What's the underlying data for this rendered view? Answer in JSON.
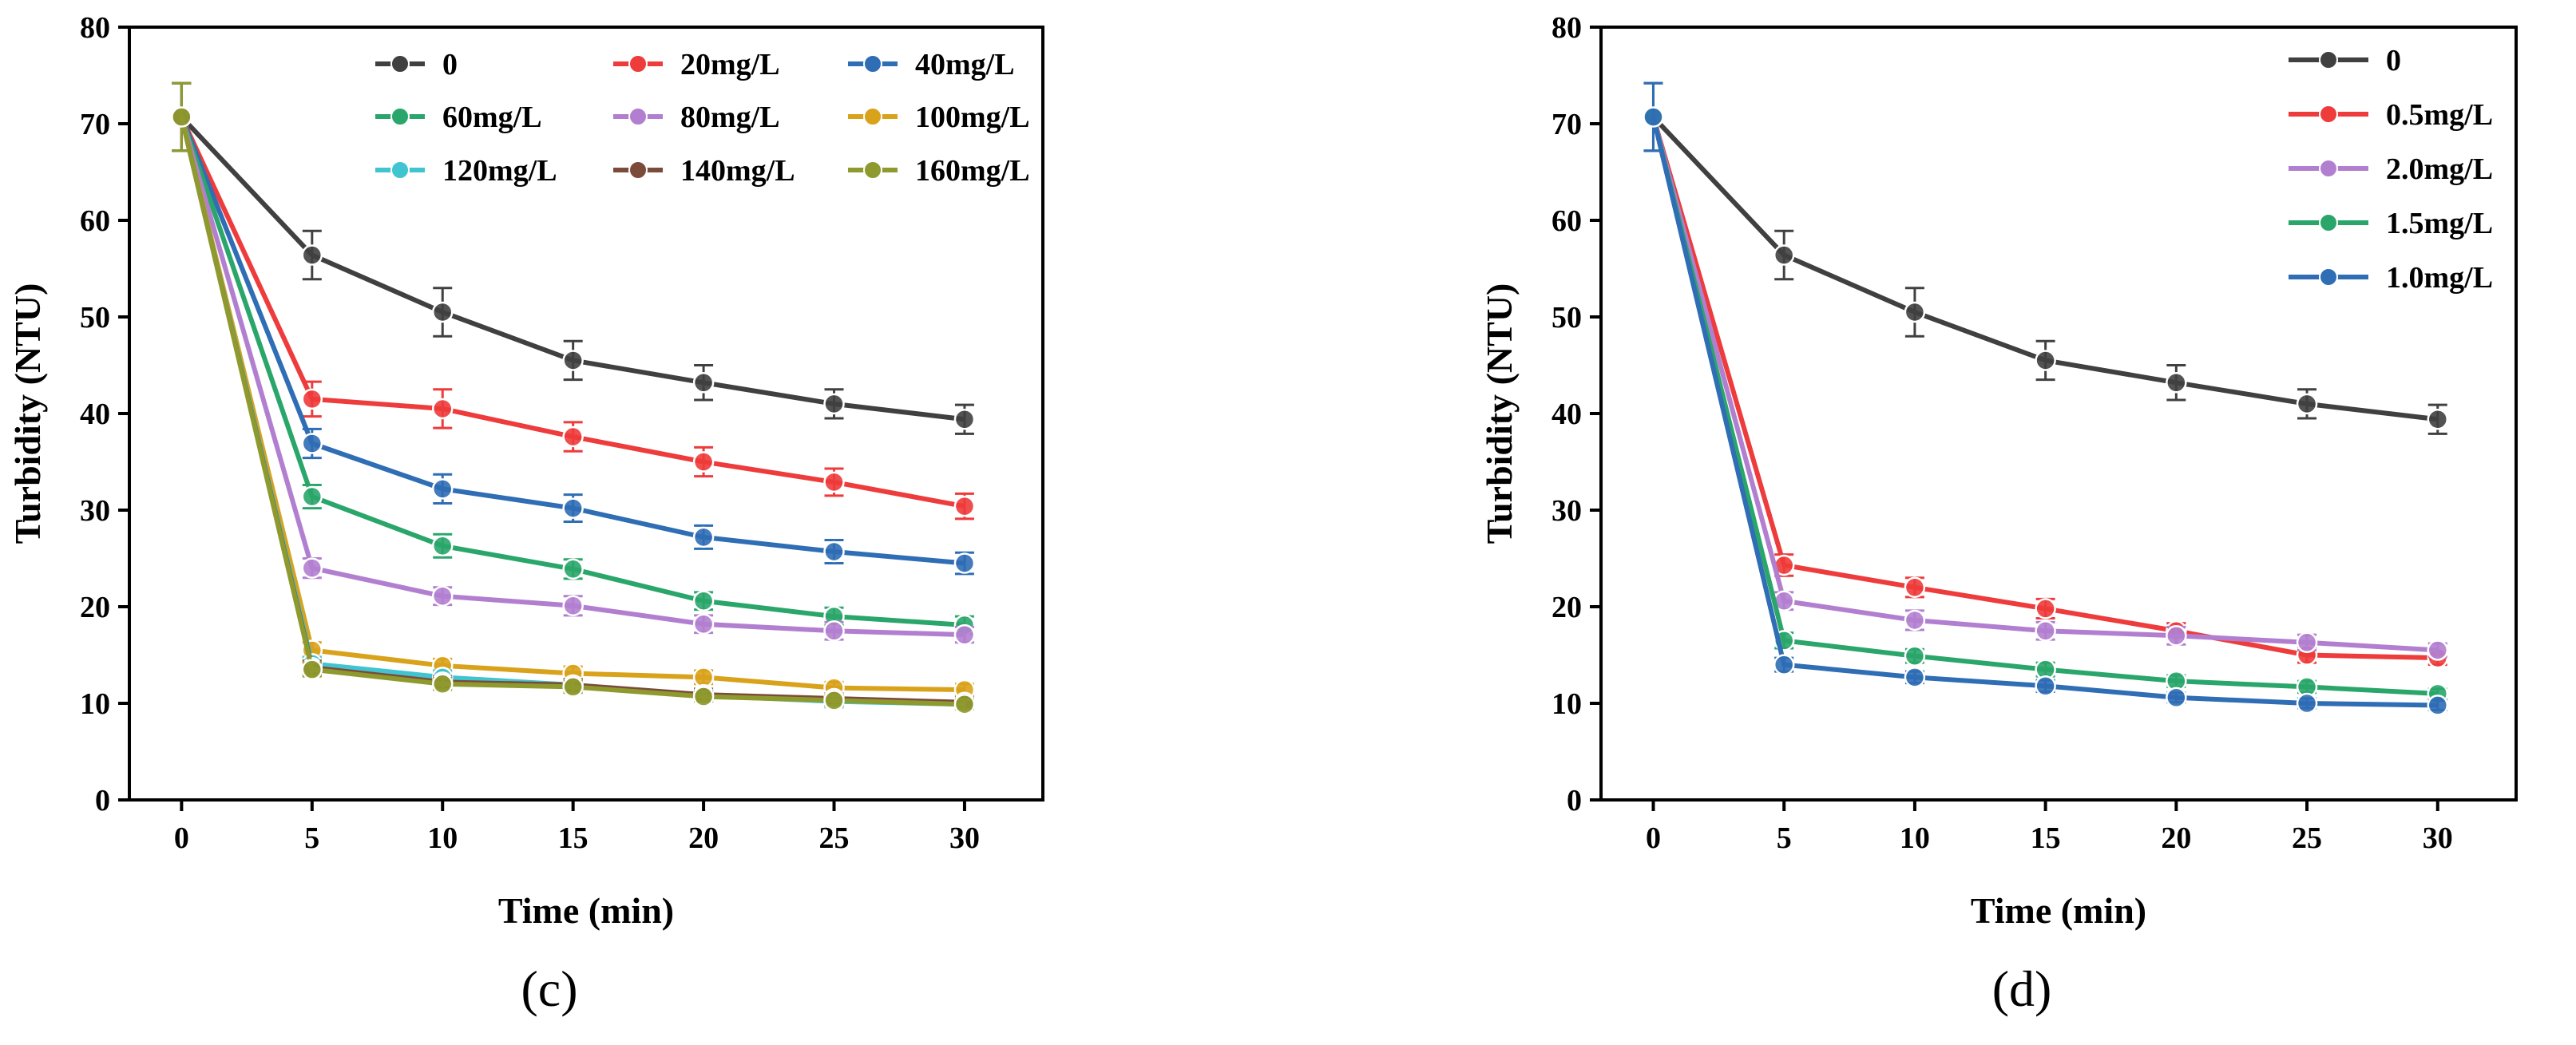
{
  "chart_data": [
    {
      "type": "line",
      "panel_label": "(c)",
      "xlabel": "Time (min)",
      "ylabel": "Turbidity (NTU)",
      "xlim": [
        -2,
        33
      ],
      "ylim": [
        0,
        80
      ],
      "xticks": [
        0,
        5,
        10,
        15,
        20,
        25,
        30
      ],
      "yticks": [
        0,
        10,
        20,
        30,
        40,
        50,
        60,
        70,
        80
      ],
      "grid": false,
      "legend_position": "top-right",
      "x": [
        0,
        5,
        10,
        15,
        20,
        25,
        30
      ],
      "series": [
        {
          "name": "0",
          "color": "#404040",
          "values": [
            70.7,
            56.4,
            50.5,
            45.5,
            43.2,
            41.0,
            39.4
          ],
          "errors": [
            3.5,
            2.5,
            2.5,
            2.0,
            1.8,
            1.5,
            1.5
          ]
        },
        {
          "name": "20mg/L",
          "color": "#ee3b3b",
          "values": [
            70.7,
            41.5,
            40.5,
            37.6,
            35.0,
            32.9,
            30.4
          ],
          "errors": [
            3.5,
            1.8,
            2.0,
            1.5,
            1.5,
            1.4,
            1.3
          ]
        },
        {
          "name": "40mg/L",
          "color": "#2f6db5",
          "values": [
            70.7,
            36.9,
            32.2,
            30.2,
            27.2,
            25.7,
            24.5
          ],
          "errors": [
            3.5,
            1.5,
            1.5,
            1.4,
            1.2,
            1.2,
            1.1
          ]
        },
        {
          "name": "60mg/L",
          "color": "#2aa66b",
          "values": [
            70.7,
            31.4,
            26.3,
            23.9,
            20.6,
            19.0,
            18.1
          ],
          "errors": [
            3.5,
            1.2,
            1.2,
            1.0,
            0.9,
            0.9,
            0.9
          ]
        },
        {
          "name": "80mg/L",
          "color": "#b27fd0",
          "values": [
            70.7,
            24.0,
            21.1,
            20.1,
            18.2,
            17.5,
            17.1
          ],
          "errors": [
            3.5,
            1.0,
            0.9,
            1.0,
            0.9,
            0.9,
            0.8
          ]
        },
        {
          "name": "100mg/L",
          "color": "#d9a21b",
          "values": [
            70.7,
            15.5,
            13.9,
            13.1,
            12.7,
            11.6,
            11.4
          ],
          "errors": [
            3.5,
            0.8,
            0.7,
            0.7,
            0.7,
            0.6,
            0.6
          ]
        },
        {
          "name": "120mg/L",
          "color": "#3fc4d0",
          "values": [
            70.7,
            14.1,
            12.7,
            11.9,
            10.8,
            10.2,
            9.9
          ],
          "errors": [
            3.5,
            0.7,
            0.7,
            0.6,
            0.6,
            0.6,
            0.5
          ]
        },
        {
          "name": "140mg/L",
          "color": "#7b4a3a",
          "values": [
            70.7,
            13.7,
            12.2,
            11.9,
            10.9,
            10.5,
            10.1
          ],
          "errors": [
            3.5,
            0.7,
            0.6,
            0.6,
            0.6,
            0.5,
            0.5
          ]
        },
        {
          "name": "160mg/L",
          "color": "#8f9a2e",
          "values": [
            70.7,
            13.5,
            12.0,
            11.7,
            10.7,
            10.3,
            9.9
          ],
          "errors": [
            3.5,
            0.7,
            0.6,
            0.6,
            0.5,
            0.5,
            0.5
          ]
        }
      ]
    },
    {
      "type": "line",
      "panel_label": "(d)",
      "xlabel": "Time (min)",
      "ylabel": "Turbidity (NTU)",
      "xlim": [
        -2,
        33
      ],
      "ylim": [
        0,
        80
      ],
      "xticks": [
        0,
        5,
        10,
        15,
        20,
        25,
        30
      ],
      "yticks": [
        0,
        10,
        20,
        30,
        40,
        50,
        60,
        70,
        80
      ],
      "grid": false,
      "legend_position": "top-right",
      "x": [
        0,
        5,
        10,
        15,
        20,
        25,
        30
      ],
      "series": [
        {
          "name": "0",
          "color": "#404040",
          "values": [
            70.7,
            56.4,
            50.5,
            45.5,
            43.2,
            41.0,
            39.4
          ],
          "errors": [
            3.5,
            2.5,
            2.5,
            2.0,
            1.8,
            1.5,
            1.5
          ]
        },
        {
          "name": "0.5mg/L",
          "color": "#ee3b3b",
          "values": [
            70.7,
            24.3,
            22.0,
            19.8,
            17.5,
            15.0,
            14.7
          ],
          "errors": [
            3.5,
            1.1,
            1.0,
            1.0,
            0.8,
            0.8,
            0.7
          ]
        },
        {
          "name": "2.0mg/L",
          "color": "#b27fd0",
          "values": [
            70.7,
            20.6,
            18.6,
            17.5,
            17.0,
            16.3,
            15.5
          ],
          "errors": [
            3.5,
            0.9,
            1.0,
            0.9,
            0.9,
            0.8,
            0.7
          ]
        },
        {
          "name": "1.5mg/L",
          "color": "#2aa66b",
          "values": [
            70.7,
            16.5,
            14.9,
            13.5,
            12.3,
            11.7,
            11.0
          ],
          "errors": [
            3.5,
            0.8,
            0.7,
            0.7,
            0.6,
            0.6,
            0.5
          ]
        },
        {
          "name": "1.0mg/L",
          "color": "#2f6db5",
          "values": [
            70.7,
            14.0,
            12.7,
            11.8,
            10.6,
            10.0,
            9.8
          ],
          "errors": [
            3.5,
            0.7,
            0.6,
            0.6,
            0.5,
            0.5,
            0.5
          ]
        }
      ]
    }
  ]
}
